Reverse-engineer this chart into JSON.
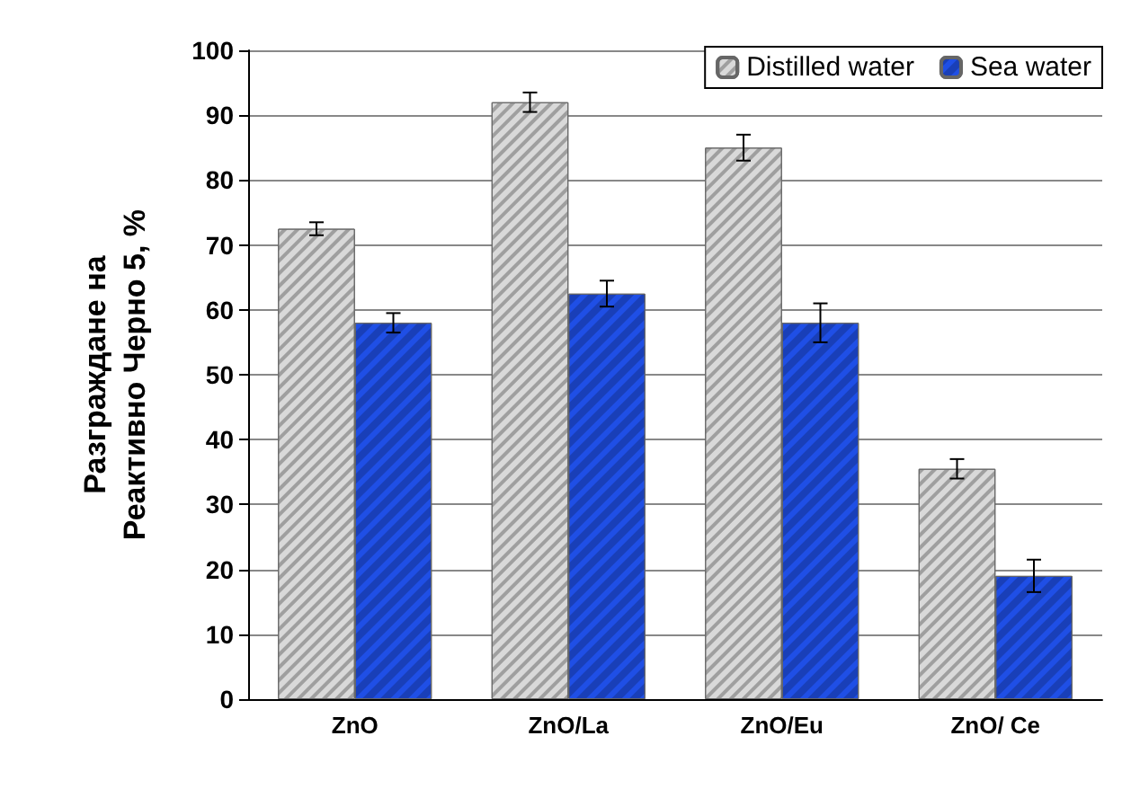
{
  "chart_data": {
    "type": "bar",
    "ylabel": "Разграждане на\nРеактивно Черно 5, %",
    "categories": [
      "ZnO",
      "ZnO/La",
      "ZnO/Eu",
      "ZnO/ Ce"
    ],
    "series": [
      {
        "name": "Distilled water",
        "color": "#d9d9d9",
        "values": [
          72.5,
          92,
          85,
          35.5
        ],
        "errors": [
          1,
          1.5,
          2,
          1.5
        ]
      },
      {
        "name": "Sea water",
        "color": "#1f4fe6",
        "values": [
          58,
          62.5,
          58,
          19
        ],
        "errors": [
          1.5,
          2,
          3,
          2.5
        ]
      }
    ],
    "ylim": [
      0,
      100
    ],
    "yticks": [
      0,
      10,
      20,
      30,
      40,
      50,
      60,
      70,
      80,
      90,
      100
    ],
    "grid": "y",
    "legend": "top right"
  }
}
